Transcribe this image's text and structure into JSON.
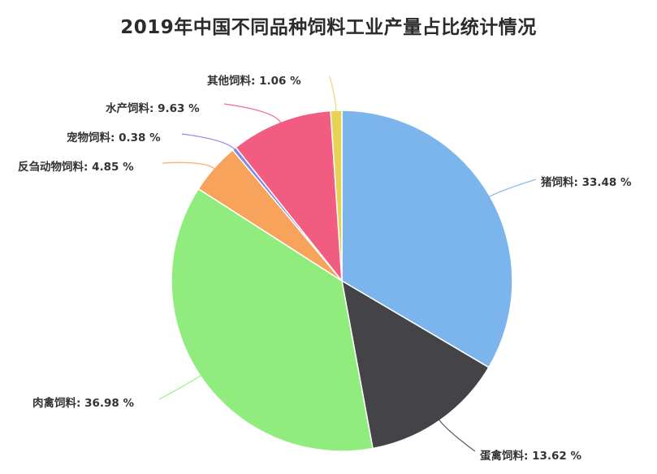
{
  "title": "2019年中国不同品种饲料工业产量占比统计情况",
  "chart_data": {
    "type": "pie",
    "title": "2019年中国不同品种饲料工业产量占比统计情况",
    "unit": "%",
    "start_angle_deg": 90,
    "direction": "clockwise",
    "legend": "none (labels with leader lines)",
    "categories": [
      "猪饲料",
      "蛋禽饲料",
      "肉禽饲料",
      "反刍动物饲料",
      "宠物饲料",
      "水产饲料",
      "其他饲料"
    ],
    "values": [
      33.48,
      13.62,
      36.98,
      4.85,
      0.38,
      9.63,
      1.06
    ],
    "colors": [
      "#7cb5ec",
      "#434348",
      "#90ed7d",
      "#f7a35c",
      "#8085e9",
      "#f15c80",
      "#e4d354"
    ],
    "labels": [
      "猪饲料: 33.48 %",
      "蛋禽饲料: 13.62 %",
      "肉禽饲料: 36.98 %",
      "反刍动物饲料: 4.85 %",
      "宠物饲料: 0.38 %",
      "水产饲料: 9.63 %",
      "其他饲料: 1.06 %"
    ]
  },
  "labels": {
    "pig": "猪饲料: 33.48 %",
    "egg_poultry": "蛋禽饲料: 13.62 %",
    "meat_poultry": "肉禽饲料: 36.98 %",
    "ruminant": "反刍动物饲料: 4.85 %",
    "pet": "宠物饲料: 0.38 %",
    "aquatic": "水产饲料: 9.63 %",
    "other": "其他饲料: 1.06 %"
  }
}
